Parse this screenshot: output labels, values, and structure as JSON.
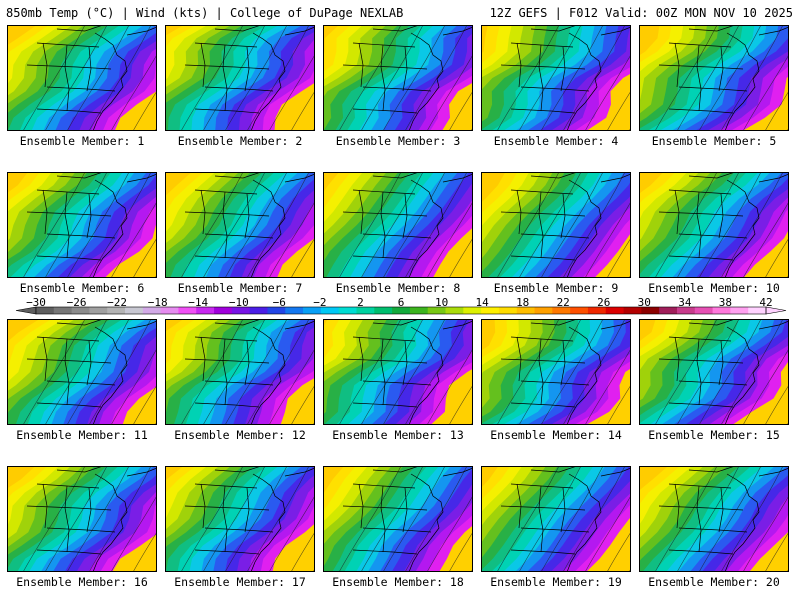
{
  "header": {
    "left_title": "850mb Temp (°C) | Wind (kts) | College of DuPage NEXLAB",
    "right_title": "12Z GEFS | F012 Valid: 00Z MON NOV 10 2025"
  },
  "panel_label_prefix": "Ensemble Member: ",
  "members": [
    1,
    2,
    3,
    4,
    5,
    6,
    7,
    8,
    9,
    10,
    11,
    12,
    13,
    14,
    15,
    16,
    17,
    18,
    19,
    20
  ],
  "colorbar": {
    "ticks": [
      "-30",
      "-26",
      "-22",
      "-18",
      "-14",
      "-10",
      "-6",
      "-2",
      "2",
      "6",
      "10",
      "14",
      "18",
      "22",
      "26",
      "30",
      "34",
      "38",
      "42"
    ],
    "colors": [
      "#5f5f5f",
      "#777777",
      "#8c8c8c",
      "#a0a0a0",
      "#b4b4b4",
      "#c8c8d2",
      "#d2aae6",
      "#e68cf0",
      "#f050f5",
      "#c828f0",
      "#a000dc",
      "#7814e6",
      "#4b1ee6",
      "#2346e6",
      "#1478f0",
      "#0aa0f5",
      "#00c8f5",
      "#00dcd2",
      "#00d2a0",
      "#00be6e",
      "#14aa3c",
      "#3cb41e",
      "#78c814",
      "#aadc0a",
      "#dcf000",
      "#fff000",
      "#ffdc00",
      "#ffbe00",
      "#ffa000",
      "#ff7800",
      "#ff5000",
      "#f02800",
      "#dc0000",
      "#b40000",
      "#8c0000",
      "#a01e5a",
      "#c83c8c",
      "#e650b4",
      "#ff78dc",
      "#ffa0f0",
      "#ffd2ff"
    ]
  }
}
